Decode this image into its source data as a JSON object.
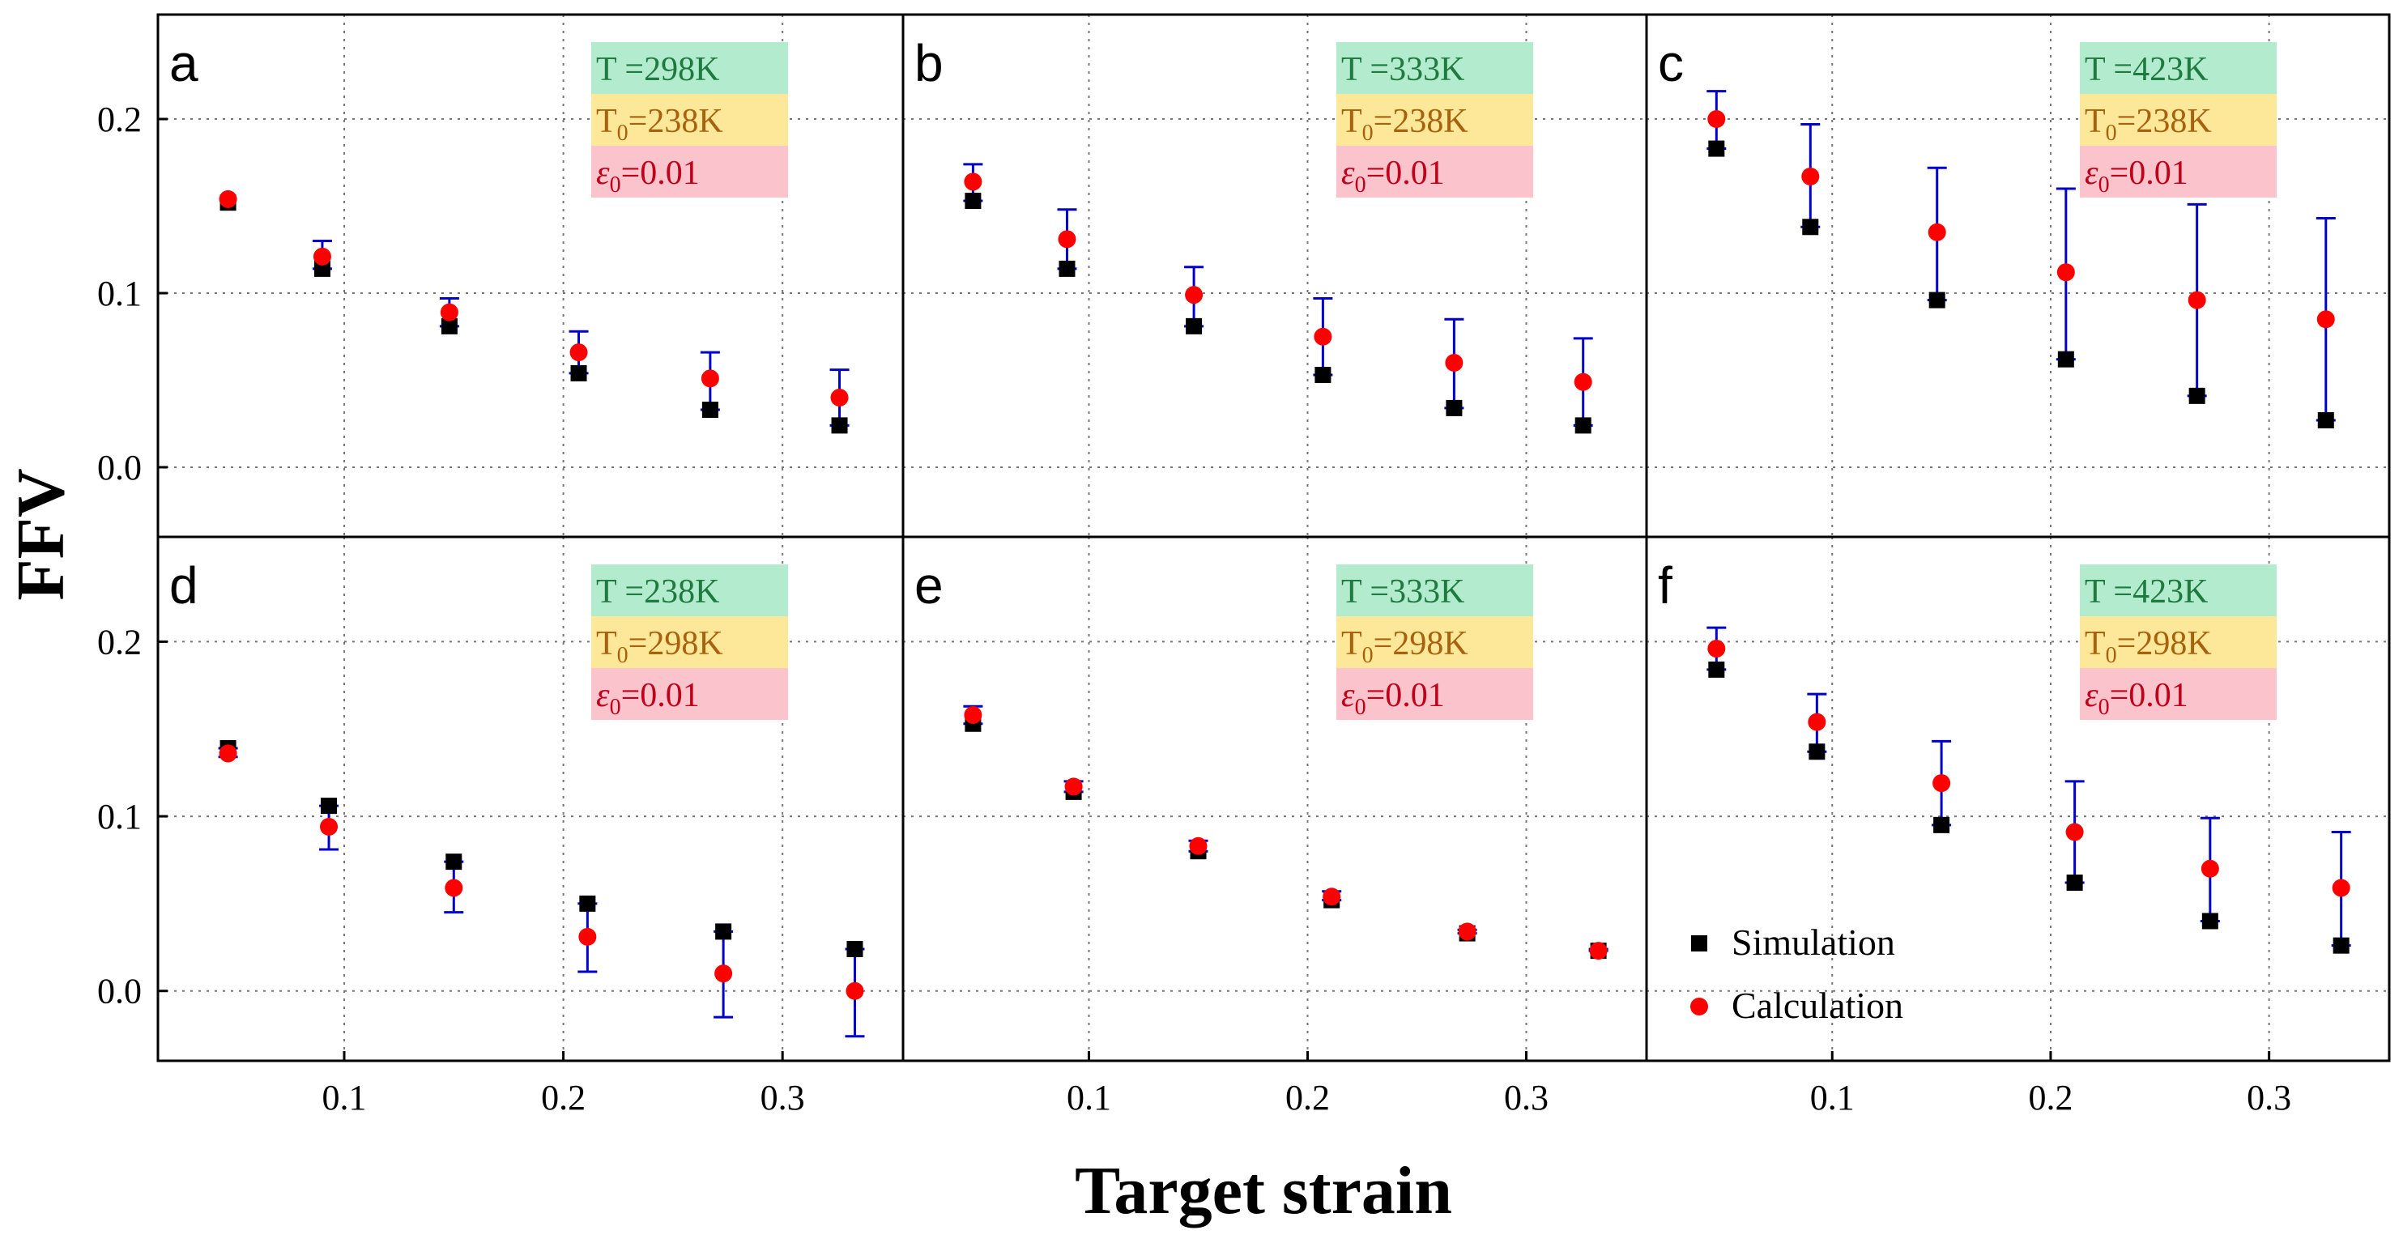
{
  "figure": {
    "ylabel": "FFV",
    "xlabel": "Target strain",
    "x_ticks": [
      0.1,
      0.2,
      0.3
    ],
    "x_tick_labels": [
      "0.1",
      "0.2",
      "0.3"
    ],
    "y_ticks": [
      0.0,
      0.1,
      0.2
    ],
    "y_tick_labels": [
      "0.0",
      "0.1",
      "0.2"
    ],
    "legend": {
      "simulation": "Simulation",
      "calculation": "Calculation"
    },
    "colors": {
      "simulation": "#000000",
      "calculation": "#ff0000",
      "errorbar": "#0000cc",
      "T_box": "#b3ebce",
      "T0_box": "#fde89a",
      "eps_box": "#fbc4cc",
      "T_text": "#1f7a3f",
      "T0_text": "#a8620e",
      "eps_text": "#c0001a"
    }
  },
  "chart_data": [
    {
      "type": "scatter",
      "panel": "a",
      "annotation": {
        "T": "T =298K",
        "T0_main": "T",
        "T0_sub": "0",
        "T0_value": "=238K",
        "eps_symbol": "ε",
        "eps_sub": "0",
        "eps_value": "=0.01"
      },
      "xlim": [
        0.015,
        0.355
      ],
      "ylim": [
        -0.04,
        0.26
      ],
      "series": [
        {
          "name": "Simulation",
          "x": [
            0.047,
            0.09,
            0.148,
            0.207,
            0.267,
            0.326
          ],
          "y": [
            0.152,
            0.114,
            0.081,
            0.054,
            0.033,
            0.024
          ]
        },
        {
          "name": "Calculation",
          "x": [
            0.047,
            0.09,
            0.148,
            0.207,
            0.267,
            0.326
          ],
          "y": [
            0.154,
            0.121,
            0.089,
            0.066,
            0.051,
            0.04
          ],
          "err_low": [
            0.154,
            0.114,
            0.081,
            0.054,
            0.033,
            0.024
          ],
          "err_high": [
            0.154,
            0.13,
            0.097,
            0.078,
            0.066,
            0.056
          ]
        }
      ]
    },
    {
      "type": "scatter",
      "panel": "b",
      "annotation": {
        "T": "T =333K",
        "T0_main": "T",
        "T0_sub": "0",
        "T0_value": "=238K",
        "eps_symbol": "ε",
        "eps_sub": "0",
        "eps_value": "=0.01"
      },
      "xlim": [
        0.015,
        0.355
      ],
      "ylim": [
        -0.04,
        0.26
      ],
      "series": [
        {
          "name": "Simulation",
          "x": [
            0.047,
            0.09,
            0.148,
            0.207,
            0.267,
            0.326
          ],
          "y": [
            0.153,
            0.114,
            0.081,
            0.053,
            0.034,
            0.024
          ]
        },
        {
          "name": "Calculation",
          "x": [
            0.047,
            0.09,
            0.148,
            0.207,
            0.267,
            0.326
          ],
          "y": [
            0.164,
            0.131,
            0.099,
            0.075,
            0.06,
            0.049
          ],
          "err_low": [
            0.153,
            0.114,
            0.081,
            0.053,
            0.034,
            0.024
          ],
          "err_high": [
            0.174,
            0.148,
            0.115,
            0.097,
            0.085,
            0.074
          ]
        }
      ]
    },
    {
      "type": "scatter",
      "panel": "c",
      "annotation": {
        "T": "T =423K",
        "T0_main": "T",
        "T0_sub": "0",
        "T0_value": "=238K",
        "eps_symbol": "ε",
        "eps_sub": "0",
        "eps_value": "=0.01"
      },
      "xlim": [
        0.015,
        0.355
      ],
      "ylim": [
        -0.04,
        0.26
      ],
      "series": [
        {
          "name": "Simulation",
          "x": [
            0.047,
            0.09,
            0.148,
            0.207,
            0.267,
            0.326
          ],
          "y": [
            0.183,
            0.138,
            0.096,
            0.062,
            0.041,
            0.027
          ]
        },
        {
          "name": "Calculation",
          "x": [
            0.047,
            0.09,
            0.148,
            0.207,
            0.267,
            0.326
          ],
          "y": [
            0.2,
            0.167,
            0.135,
            0.112,
            0.096,
            0.085
          ],
          "err_low": [
            0.183,
            0.138,
            0.096,
            0.062,
            0.041,
            0.027
          ],
          "err_high": [
            0.216,
            0.197,
            0.172,
            0.16,
            0.151,
            0.143
          ]
        }
      ]
    },
    {
      "type": "scatter",
      "panel": "d",
      "annotation": {
        "T": "T =238K",
        "T0_main": "T",
        "T0_sub": "0",
        "T0_value": "=298K",
        "eps_symbol": "ε",
        "eps_sub": "0",
        "eps_value": "=0.01"
      },
      "xlim": [
        0.015,
        0.355
      ],
      "ylim": [
        -0.04,
        0.26
      ],
      "series": [
        {
          "name": "Simulation",
          "x": [
            0.047,
            0.093,
            0.15,
            0.211,
            0.273,
            0.333
          ],
          "y": [
            0.139,
            0.106,
            0.074,
            0.05,
            0.034,
            0.024
          ]
        },
        {
          "name": "Calculation",
          "x": [
            0.047,
            0.093,
            0.15,
            0.211,
            0.273,
            0.333
          ],
          "y": [
            0.136,
            0.094,
            0.059,
            0.031,
            0.01,
            0.0
          ],
          "err_low": [
            0.134,
            0.081,
            0.045,
            0.011,
            -0.015,
            -0.026
          ],
          "err_high": [
            0.139,
            0.106,
            0.074,
            0.05,
            0.034,
            0.024
          ]
        }
      ]
    },
    {
      "type": "scatter",
      "panel": "e",
      "annotation": {
        "T": "T =333K",
        "T0_main": "T",
        "T0_sub": "0",
        "T0_value": "=298K",
        "eps_symbol": "ε",
        "eps_sub": "0",
        "eps_value": "=0.01"
      },
      "xlim": [
        0.015,
        0.355
      ],
      "ylim": [
        -0.04,
        0.26
      ],
      "series": [
        {
          "name": "Simulation",
          "x": [
            0.047,
            0.093,
            0.15,
            0.211,
            0.273,
            0.333
          ],
          "y": [
            0.153,
            0.114,
            0.08,
            0.052,
            0.033,
            0.023
          ]
        },
        {
          "name": "Calculation",
          "x": [
            0.047,
            0.093,
            0.15,
            0.211,
            0.273,
            0.333
          ],
          "y": [
            0.158,
            0.117,
            0.083,
            0.054,
            0.034,
            0.023
          ],
          "err_low": [
            0.153,
            0.114,
            0.08,
            0.052,
            0.033,
            0.023
          ],
          "err_high": [
            0.163,
            0.12,
            0.086,
            0.057,
            0.035,
            0.024
          ]
        }
      ]
    },
    {
      "type": "scatter",
      "panel": "f",
      "annotation": {
        "T": "T =423K",
        "T0_main": "T",
        "T0_sub": "0",
        "T0_value": "=298K",
        "eps_symbol": "ε",
        "eps_sub": "0",
        "eps_value": "=0.01"
      },
      "xlim": [
        0.015,
        0.355
      ],
      "ylim": [
        -0.04,
        0.26
      ],
      "legend_panel": true,
      "series": [
        {
          "name": "Simulation",
          "x": [
            0.047,
            0.093,
            0.15,
            0.211,
            0.273,
            0.333
          ],
          "y": [
            0.184,
            0.137,
            0.095,
            0.062,
            0.04,
            0.026
          ]
        },
        {
          "name": "Calculation",
          "x": [
            0.047,
            0.093,
            0.15,
            0.211,
            0.273,
            0.333
          ],
          "y": [
            0.196,
            0.154,
            0.119,
            0.091,
            0.07,
            0.059
          ],
          "err_low": [
            0.184,
            0.137,
            0.095,
            0.062,
            0.04,
            0.026
          ],
          "err_high": [
            0.208,
            0.17,
            0.143,
            0.12,
            0.099,
            0.091
          ]
        }
      ]
    }
  ]
}
